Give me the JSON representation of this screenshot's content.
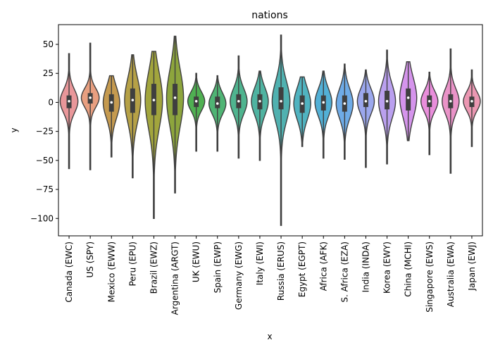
{
  "chart_data": {
    "type": "violin",
    "title": "nations",
    "xlabel": "x",
    "ylabel": "y",
    "ylim": [
      -115,
      67
    ],
    "yticks": [
      50,
      25,
      0,
      -25,
      -50,
      -75,
      -100
    ],
    "ytick_labels": [
      "50",
      "25",
      "0",
      "−25",
      "−50",
      "−75",
      "−100"
    ],
    "grid": false,
    "categories": [
      "Canada (EWC)",
      "US (SPY)",
      "Mexico (EWW)",
      "Peru (EPU)",
      "Brazil (EWZ)",
      "Argentina (ARGT)",
      "UK (EWU)",
      "Spain (EWP)",
      "Germany (EWG)",
      "Italy (EWI)",
      "Russia (ERUS)",
      "Egypt (EGPT)",
      "Africa (AFK)",
      "S. Africa (EZA)",
      "India (INDA)",
      "Korea (EWY)",
      "China (MCHI)",
      "Singapore (EWS)",
      "Australia (EWA)",
      "Japan (EWJ)"
    ],
    "colors": [
      "#e9979a",
      "#e89f80",
      "#c59a4f",
      "#b6a146",
      "#a2a53d",
      "#8da53d",
      "#4fb052",
      "#4fb474",
      "#4fb48f",
      "#4fb3a1",
      "#50b1b0",
      "#50b3c0",
      "#52b0d6",
      "#6eabe7",
      "#9ba7ed",
      "#baa0ef",
      "#d594ec",
      "#e98edb",
      "#ea93c8",
      "#eb97b2"
    ],
    "series": [
      {
        "name": "Canada (EWC)",
        "min": -57,
        "q1": -5,
        "median": 1,
        "q3": 6,
        "max": 42,
        "max_width": 0.42
      },
      {
        "name": "US (SPY)",
        "min": -58,
        "q1": -1,
        "median": 4,
        "q3": 8,
        "max": 51,
        "max_width": 0.42
      },
      {
        "name": "Mexico (EWW)",
        "min": -47,
        "q1": -8,
        "median": 0,
        "q3": 7,
        "max": 23,
        "max_width": 0.39
      },
      {
        "name": "Peru (EPU)",
        "min": -65,
        "q1": -9,
        "median": 2,
        "q3": 12,
        "max": 41,
        "max_width": 0.38
      },
      {
        "name": "Brazil (EWZ)",
        "min": -100,
        "q1": -11,
        "median": 2,
        "q3": 16,
        "max": 44,
        "max_width": 0.41
      },
      {
        "name": "Argentina (ARGT)",
        "min": -78,
        "q1": -11,
        "median": 4,
        "q3": 16,
        "max": 57,
        "max_width": 0.4
      },
      {
        "name": "UK (EWU)",
        "min": -42,
        "q1": -4,
        "median": 1,
        "q3": 5,
        "max": 25,
        "max_width": 0.4
      },
      {
        "name": "Spain (EWP)",
        "min": -42,
        "q1": -5,
        "median": -1,
        "q3": 5,
        "max": 23,
        "max_width": 0.4
      },
      {
        "name": "Germany (EWG)",
        "min": -48,
        "q1": -5,
        "median": 1,
        "q3": 7,
        "max": 40,
        "max_width": 0.4
      },
      {
        "name": "Italy (EWI)",
        "min": -50,
        "q1": -6,
        "median": 1,
        "q3": 7,
        "max": 27,
        "max_width": 0.4
      },
      {
        "name": "Russia (ERUS)",
        "min": -106,
        "q1": -6,
        "median": 1,
        "q3": 13,
        "max": 58,
        "max_width": 0.42
      },
      {
        "name": "Egypt (EGPT)",
        "min": -38,
        "q1": -9,
        "median": -1,
        "q3": 6,
        "max": 22,
        "max_width": 0.4
      },
      {
        "name": "Africa (AFK)",
        "min": -48,
        "q1": -7,
        "median": 0,
        "q3": 6,
        "max": 27,
        "max_width": 0.4
      },
      {
        "name": "S. Africa (EZA)",
        "min": -49,
        "q1": -8,
        "median": -1,
        "q3": 6,
        "max": 33,
        "max_width": 0.4
      },
      {
        "name": "India (INDA)",
        "min": -56,
        "q1": -4,
        "median": 1,
        "q3": 8,
        "max": 28,
        "max_width": 0.4
      },
      {
        "name": "Korea (EWY)",
        "min": -53,
        "q1": -6,
        "median": 1,
        "q3": 10,
        "max": 45,
        "max_width": 0.4
      },
      {
        "name": "China (MCHI)",
        "min": -33,
        "q1": -7,
        "median": 4,
        "q3": 12,
        "max": 35,
        "max_width": 0.4
      },
      {
        "name": "Singapore (EWS)",
        "min": -45,
        "q1": -4,
        "median": 1,
        "q3": 6,
        "max": 26,
        "max_width": 0.4
      },
      {
        "name": "Australia (EWA)",
        "min": -61,
        "q1": -5,
        "median": 1,
        "q3": 7,
        "max": 46,
        "max_width": 0.4
      },
      {
        "name": "Japan (EWJ)",
        "min": -38,
        "q1": -4,
        "median": 1,
        "q3": 5,
        "max": 28,
        "max_width": 0.4
      }
    ]
  }
}
